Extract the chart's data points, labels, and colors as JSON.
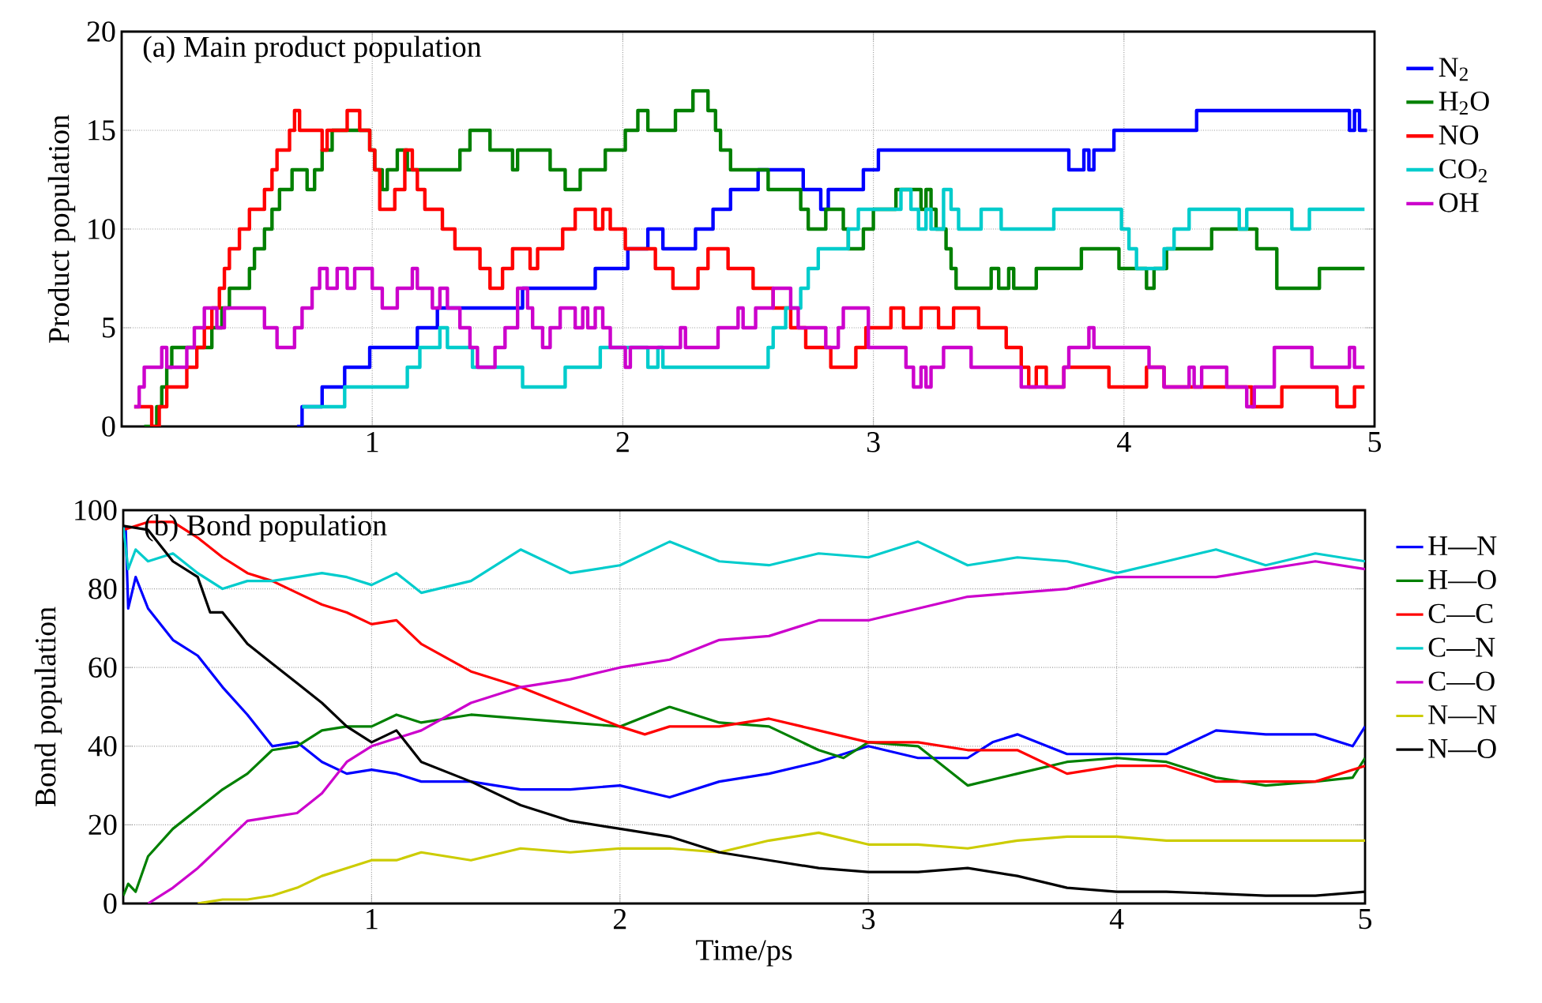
{
  "chart_data": [
    {
      "type": "step",
      "title": "(a) Main product population",
      "ylabel": "Product population",
      "xlim": [
        0,
        5
      ],
      "ylim": [
        0,
        20
      ],
      "xticks": [
        1,
        2,
        3,
        4,
        5
      ],
      "yticks": [
        0,
        5,
        10,
        15,
        20
      ],
      "grid": true,
      "legend": "right",
      "marker": "none",
      "series": [
        {
          "name": "N$_{2}$",
          "color": "#0000ff",
          "x": [
            0.7,
            0.72,
            0.8,
            0.89,
            0.99,
            1.18,
            1.26,
            1.6,
            1.89,
            2.02,
            2.1,
            2.16,
            2.29,
            2.36,
            2.43,
            2.54,
            2.72,
            2.79,
            2.82,
            2.96,
            3.02,
            3.78,
            3.84,
            3.86,
            3.88,
            3.96,
            4.29,
            4.9,
            4.92,
            4.94,
            4.97
          ],
          "values": [
            0,
            1,
            2,
            3,
            4,
            5,
            6,
            7,
            8,
            9,
            10,
            9,
            10,
            11,
            12,
            13,
            12,
            11,
            12,
            13,
            14,
            13,
            14,
            13,
            14,
            15,
            16,
            15,
            16,
            15,
            15
          ]
        },
        {
          "name": "H$_{2}$O",
          "color": "#008000",
          "x": [
            0.09,
            0.14,
            0.16,
            0.18,
            0.2,
            0.36,
            0.4,
            0.43,
            0.51,
            0.53,
            0.57,
            0.6,
            0.63,
            0.68,
            0.74,
            0.77,
            0.8,
            0.84,
            0.99,
            1.01,
            1.04,
            1.06,
            1.1,
            1.14,
            1.35,
            1.39,
            1.47,
            1.56,
            1.58,
            1.71,
            1.77,
            1.83,
            1.93,
            2.01,
            2.06,
            2.1,
            2.21,
            2.28,
            2.34,
            2.37,
            2.39,
            2.43,
            2.58,
            2.71,
            2.74,
            2.81,
            2.88,
            2.9,
            2.96,
            3.0,
            3.09,
            3.19,
            3.21,
            3.23,
            3.25,
            3.29,
            3.31,
            3.33,
            3.47,
            3.5,
            3.54,
            3.56,
            3.65,
            3.83,
            3.98,
            4.09,
            4.12,
            4.17,
            4.35,
            4.53,
            4.61,
            4.78,
            4.96
          ],
          "values": [
            0,
            1,
            2,
            3,
            4,
            5,
            6,
            7,
            8,
            9,
            10,
            11,
            12,
            13,
            12,
            13,
            14,
            15,
            14,
            13,
            12,
            13,
            14,
            13,
            14,
            15,
            14,
            13,
            14,
            13,
            12,
            13,
            14,
            15,
            16,
            15,
            16,
            17,
            16,
            15,
            14,
            13,
            12,
            11,
            10,
            11,
            10,
            9,
            10,
            11,
            12,
            11,
            12,
            11,
            10,
            9,
            8,
            7,
            8,
            7,
            8,
            7,
            8,
            9,
            8,
            7,
            8,
            9,
            10,
            9,
            7,
            8,
            8
          ]
        },
        {
          "name": "NO",
          "color": "#ff0000",
          "x": [
            0.05,
            0.12,
            0.15,
            0.18,
            0.26,
            0.3,
            0.33,
            0.36,
            0.39,
            0.41,
            0.43,
            0.47,
            0.51,
            0.57,
            0.6,
            0.62,
            0.67,
            0.69,
            0.71,
            0.8,
            0.82,
            0.9,
            0.95,
            0.99,
            1.01,
            1.03,
            1.09,
            1.13,
            1.16,
            1.18,
            1.21,
            1.28,
            1.33,
            1.43,
            1.47,
            1.52,
            1.56,
            1.63,
            1.66,
            1.76,
            1.81,
            1.89,
            1.92,
            1.95,
            2.01,
            2.13,
            2.2,
            2.3,
            2.34,
            2.42,
            2.52,
            2.6,
            2.67,
            2.73,
            2.83,
            2.93,
            2.97,
            3.07,
            3.12,
            3.19,
            3.26,
            3.32,
            3.42,
            3.53,
            3.59,
            3.62,
            3.65,
            3.69,
            3.76,
            3.94,
            4.09,
            4.16,
            4.51,
            4.63,
            4.85,
            4.92,
            4.96
          ],
          "values": [
            1,
            0,
            1,
            2,
            3,
            4,
            5,
            6,
            7,
            8,
            9,
            10,
            11,
            12,
            13,
            14,
            15,
            16,
            15,
            14,
            15,
            16,
            15,
            14,
            13,
            11,
            12,
            14,
            13,
            12,
            11,
            10,
            9,
            8,
            7,
            8,
            9,
            8,
            9,
            10,
            11,
            10,
            11,
            10,
            9,
            8,
            7,
            8,
            9,
            8,
            7,
            6,
            5,
            4,
            3,
            4,
            5,
            6,
            5,
            6,
            5,
            6,
            5,
            4,
            3,
            2,
            3,
            2,
            3,
            2,
            3,
            2,
            1,
            2,
            1,
            2,
            2
          ]
        },
        {
          "name": "CO$_{2}$",
          "color": "#00cccc",
          "x": [
            0.72,
            0.89,
            1.14,
            1.19,
            1.27,
            1.3,
            1.4,
            1.6,
            1.77,
            1.91,
            2.1,
            2.14,
            2.16,
            2.58,
            2.6,
            2.65,
            2.71,
            2.74,
            2.78,
            2.9,
            2.94,
            3.11,
            3.15,
            3.18,
            3.21,
            3.23,
            3.28,
            3.31,
            3.34,
            3.43,
            3.51,
            3.72,
            3.99,
            4.02,
            4.05,
            4.16,
            4.2,
            4.26,
            4.46,
            4.49,
            4.67,
            4.74,
            4.96
          ],
          "values": [
            1,
            2,
            3,
            4,
            5,
            4,
            3,
            2,
            3,
            4,
            3,
            4,
            3,
            4,
            5,
            6,
            7,
            8,
            9,
            10,
            11,
            12,
            11,
            10,
            11,
            10,
            12,
            11,
            10,
            11,
            10,
            11,
            10,
            9,
            8,
            9,
            10,
            11,
            10,
            11,
            10,
            11,
            11
          ]
        },
        {
          "name": "OH",
          "color": "#cc00cc",
          "x": [
            0.05,
            0.07,
            0.09,
            0.16,
            0.18,
            0.26,
            0.29,
            0.33,
            0.38,
            0.41,
            0.57,
            0.62,
            0.69,
            0.72,
            0.76,
            0.79,
            0.82,
            0.86,
            0.9,
            0.93,
            1.0,
            1.04,
            1.1,
            1.16,
            1.18,
            1.24,
            1.27,
            1.3,
            1.35,
            1.39,
            1.42,
            1.49,
            1.53,
            1.58,
            1.62,
            1.64,
            1.68,
            1.71,
            1.75,
            1.81,
            1.84,
            1.86,
            1.89,
            1.92,
            1.95,
            2.01,
            2.03,
            2.23,
            2.25,
            2.38,
            2.46,
            2.48,
            2.53,
            2.6,
            2.67,
            2.7,
            2.81,
            2.86,
            2.88,
            2.98,
            3.13,
            3.16,
            3.19,
            3.21,
            3.23,
            3.28,
            3.39,
            3.59,
            3.76,
            3.78,
            3.86,
            3.88,
            4.1,
            4.16,
            4.26,
            4.28,
            4.31,
            4.41,
            4.49,
            4.52,
            4.6,
            4.75,
            4.9,
            4.92,
            4.96
          ],
          "values": [
            1,
            2,
            3,
            4,
            3,
            4,
            5,
            6,
            5,
            6,
            5,
            4,
            5,
            6,
            7,
            8,
            7,
            8,
            7,
            8,
            7,
            6,
            7,
            8,
            7,
            6,
            7,
            6,
            5,
            4,
            3,
            4,
            5,
            7,
            6,
            5,
            4,
            5,
            6,
            5,
            6,
            5,
            6,
            5,
            4,
            3,
            4,
            5,
            4,
            5,
            6,
            5,
            6,
            7,
            6,
            5,
            4,
            5,
            6,
            4,
            3,
            2,
            3,
            2,
            3,
            4,
            3,
            2,
            3,
            4,
            5,
            4,
            3,
            2,
            3,
            2,
            3,
            2,
            1,
            2,
            4,
            3,
            4,
            3,
            3
          ]
        }
      ]
    },
    {
      "type": "line",
      "title": "(b) Bond population",
      "xlabel": "Time/ps",
      "ylabel": "Bond population",
      "xlim": [
        0,
        5
      ],
      "ylim": [
        0,
        100
      ],
      "xticks": [
        1,
        2,
        3,
        4,
        5
      ],
      "yticks": [
        0,
        20,
        40,
        60,
        80,
        100
      ],
      "grid": true,
      "legend": "right",
      "marker": "none",
      "series": [
        {
          "name": "H—N",
          "color": "#0000ff",
          "x": [
            0,
            0.01,
            0.02,
            0.05,
            0.1,
            0.2,
            0.3,
            0.4,
            0.5,
            0.6,
            0.7,
            0.8,
            0.9,
            1.0,
            1.1,
            1.2,
            1.4,
            1.6,
            1.8,
            2.0,
            2.2,
            2.4,
            2.6,
            2.8,
            3.0,
            3.2,
            3.4,
            3.5,
            3.6,
            3.8,
            4.0,
            4.2,
            4.4,
            4.6,
            4.8,
            4.95,
            5.0
          ],
          "values": [
            96,
            95,
            75,
            83,
            75,
            67,
            63,
            55,
            48,
            40,
            41,
            36,
            33,
            34,
            33,
            31,
            31,
            29,
            29,
            30,
            27,
            31,
            33,
            36,
            40,
            37,
            37,
            41,
            43,
            38,
            38,
            38,
            44,
            43,
            43,
            40,
            45
          ]
        },
        {
          "name": "H—O",
          "color": "#008000",
          "x": [
            0,
            0.02,
            0.05,
            0.1,
            0.2,
            0.3,
            0.4,
            0.5,
            0.6,
            0.7,
            0.8,
            0.9,
            1.0,
            1.1,
            1.2,
            1.4,
            1.6,
            1.8,
            2.0,
            2.2,
            2.4,
            2.6,
            2.8,
            2.9,
            3.0,
            3.2,
            3.4,
            3.6,
            3.8,
            4.0,
            4.2,
            4.4,
            4.6,
            4.8,
            4.95,
            5.0
          ],
          "values": [
            2,
            5,
            3,
            12,
            19,
            24,
            29,
            33,
            39,
            40,
            44,
            45,
            45,
            48,
            46,
            48,
            47,
            46,
            45,
            50,
            46,
            45,
            39,
            37,
            41,
            40,
            30,
            33,
            36,
            37,
            36,
            32,
            30,
            31,
            32,
            37
          ]
        },
        {
          "name": "C—C",
          "color": "#ff0000",
          "x": [
            0,
            0.1,
            0.2,
            0.3,
            0.4,
            0.5,
            0.6,
            0.7,
            0.8,
            0.9,
            1.0,
            1.1,
            1.2,
            1.4,
            1.6,
            1.8,
            2.0,
            2.1,
            2.2,
            2.4,
            2.6,
            2.8,
            3.0,
            3.2,
            3.4,
            3.6,
            3.8,
            4.0,
            4.2,
            4.4,
            4.6,
            4.8,
            5.0
          ],
          "values": [
            95,
            97,
            97,
            93,
            88,
            84,
            82,
            79,
            76,
            74,
            71,
            72,
            66,
            59,
            55,
            50,
            45,
            43,
            45,
            45,
            47,
            44,
            41,
            41,
            39,
            39,
            33,
            35,
            35,
            31,
            31,
            31,
            35
          ]
        },
        {
          "name": "C—N",
          "color": "#00cccc",
          "x": [
            0,
            0.02,
            0.05,
            0.1,
            0.2,
            0.3,
            0.4,
            0.5,
            0.6,
            0.7,
            0.8,
            0.9,
            1.0,
            1.1,
            1.2,
            1.4,
            1.6,
            1.8,
            2.0,
            2.2,
            2.4,
            2.6,
            2.8,
            3.0,
            3.2,
            3.4,
            3.6,
            3.8,
            4.0,
            4.2,
            4.4,
            4.6,
            4.8,
            5.0
          ],
          "values": [
            96,
            85,
            90,
            87,
            89,
            84,
            80,
            82,
            82,
            83,
            84,
            83,
            81,
            84,
            79,
            82,
            90,
            84,
            86,
            92,
            87,
            86,
            89,
            88,
            92,
            86,
            88,
            87,
            84,
            87,
            90,
            86,
            89,
            87
          ]
        },
        {
          "name": "C—O",
          "color": "#cc00cc",
          "x": [
            0.1,
            0.2,
            0.3,
            0.4,
            0.5,
            0.6,
            0.7,
            0.8,
            0.9,
            1.0,
            1.1,
            1.2,
            1.4,
            1.6,
            1.8,
            2.0,
            2.2,
            2.4,
            2.6,
            2.8,
            3.0,
            3.2,
            3.4,
            3.6,
            3.8,
            4.0,
            4.2,
            4.4,
            4.6,
            4.8,
            5.0
          ],
          "values": [
            0,
            4,
            9,
            15,
            21,
            22,
            23,
            28,
            36,
            40,
            42,
            44,
            51,
            55,
            57,
            60,
            62,
            67,
            68,
            72,
            72,
            75,
            78,
            79,
            80,
            83,
            83,
            83,
            85,
            87,
            85
          ]
        },
        {
          "name": "N—N",
          "color": "#cccc00",
          "x": [
            0.3,
            0.4,
            0.5,
            0.6,
            0.7,
            0.8,
            0.9,
            1.0,
            1.1,
            1.2,
            1.4,
            1.6,
            1.8,
            2.0,
            2.2,
            2.4,
            2.6,
            2.8,
            3.0,
            3.2,
            3.4,
            3.6,
            3.8,
            4.0,
            4.2,
            5.0
          ],
          "values": [
            0,
            1,
            1,
            2,
            4,
            7,
            9,
            11,
            11,
            13,
            11,
            14,
            13,
            14,
            14,
            13,
            16,
            18,
            15,
            15,
            14,
            16,
            17,
            17,
            16,
            16
          ]
        },
        {
          "name": "N—O",
          "color": "#000000",
          "x": [
            0,
            0.1,
            0.2,
            0.3,
            0.35,
            0.4,
            0.5,
            0.6,
            0.7,
            0.8,
            0.9,
            1.0,
            1.1,
            1.2,
            1.4,
            1.6,
            1.8,
            2.0,
            2.2,
            2.4,
            2.6,
            2.8,
            3.0,
            3.2,
            3.4,
            3.6,
            3.8,
            4.0,
            4.2,
            4.6,
            4.8,
            5.0
          ],
          "values": [
            96,
            95,
            87,
            83,
            74,
            74,
            66,
            61,
            56,
            51,
            45,
            41,
            44,
            36,
            31,
            25,
            21,
            19,
            17,
            13,
            11,
            9,
            8,
            8,
            9,
            7,
            4,
            3,
            3,
            2,
            2,
            3
          ]
        }
      ]
    }
  ]
}
